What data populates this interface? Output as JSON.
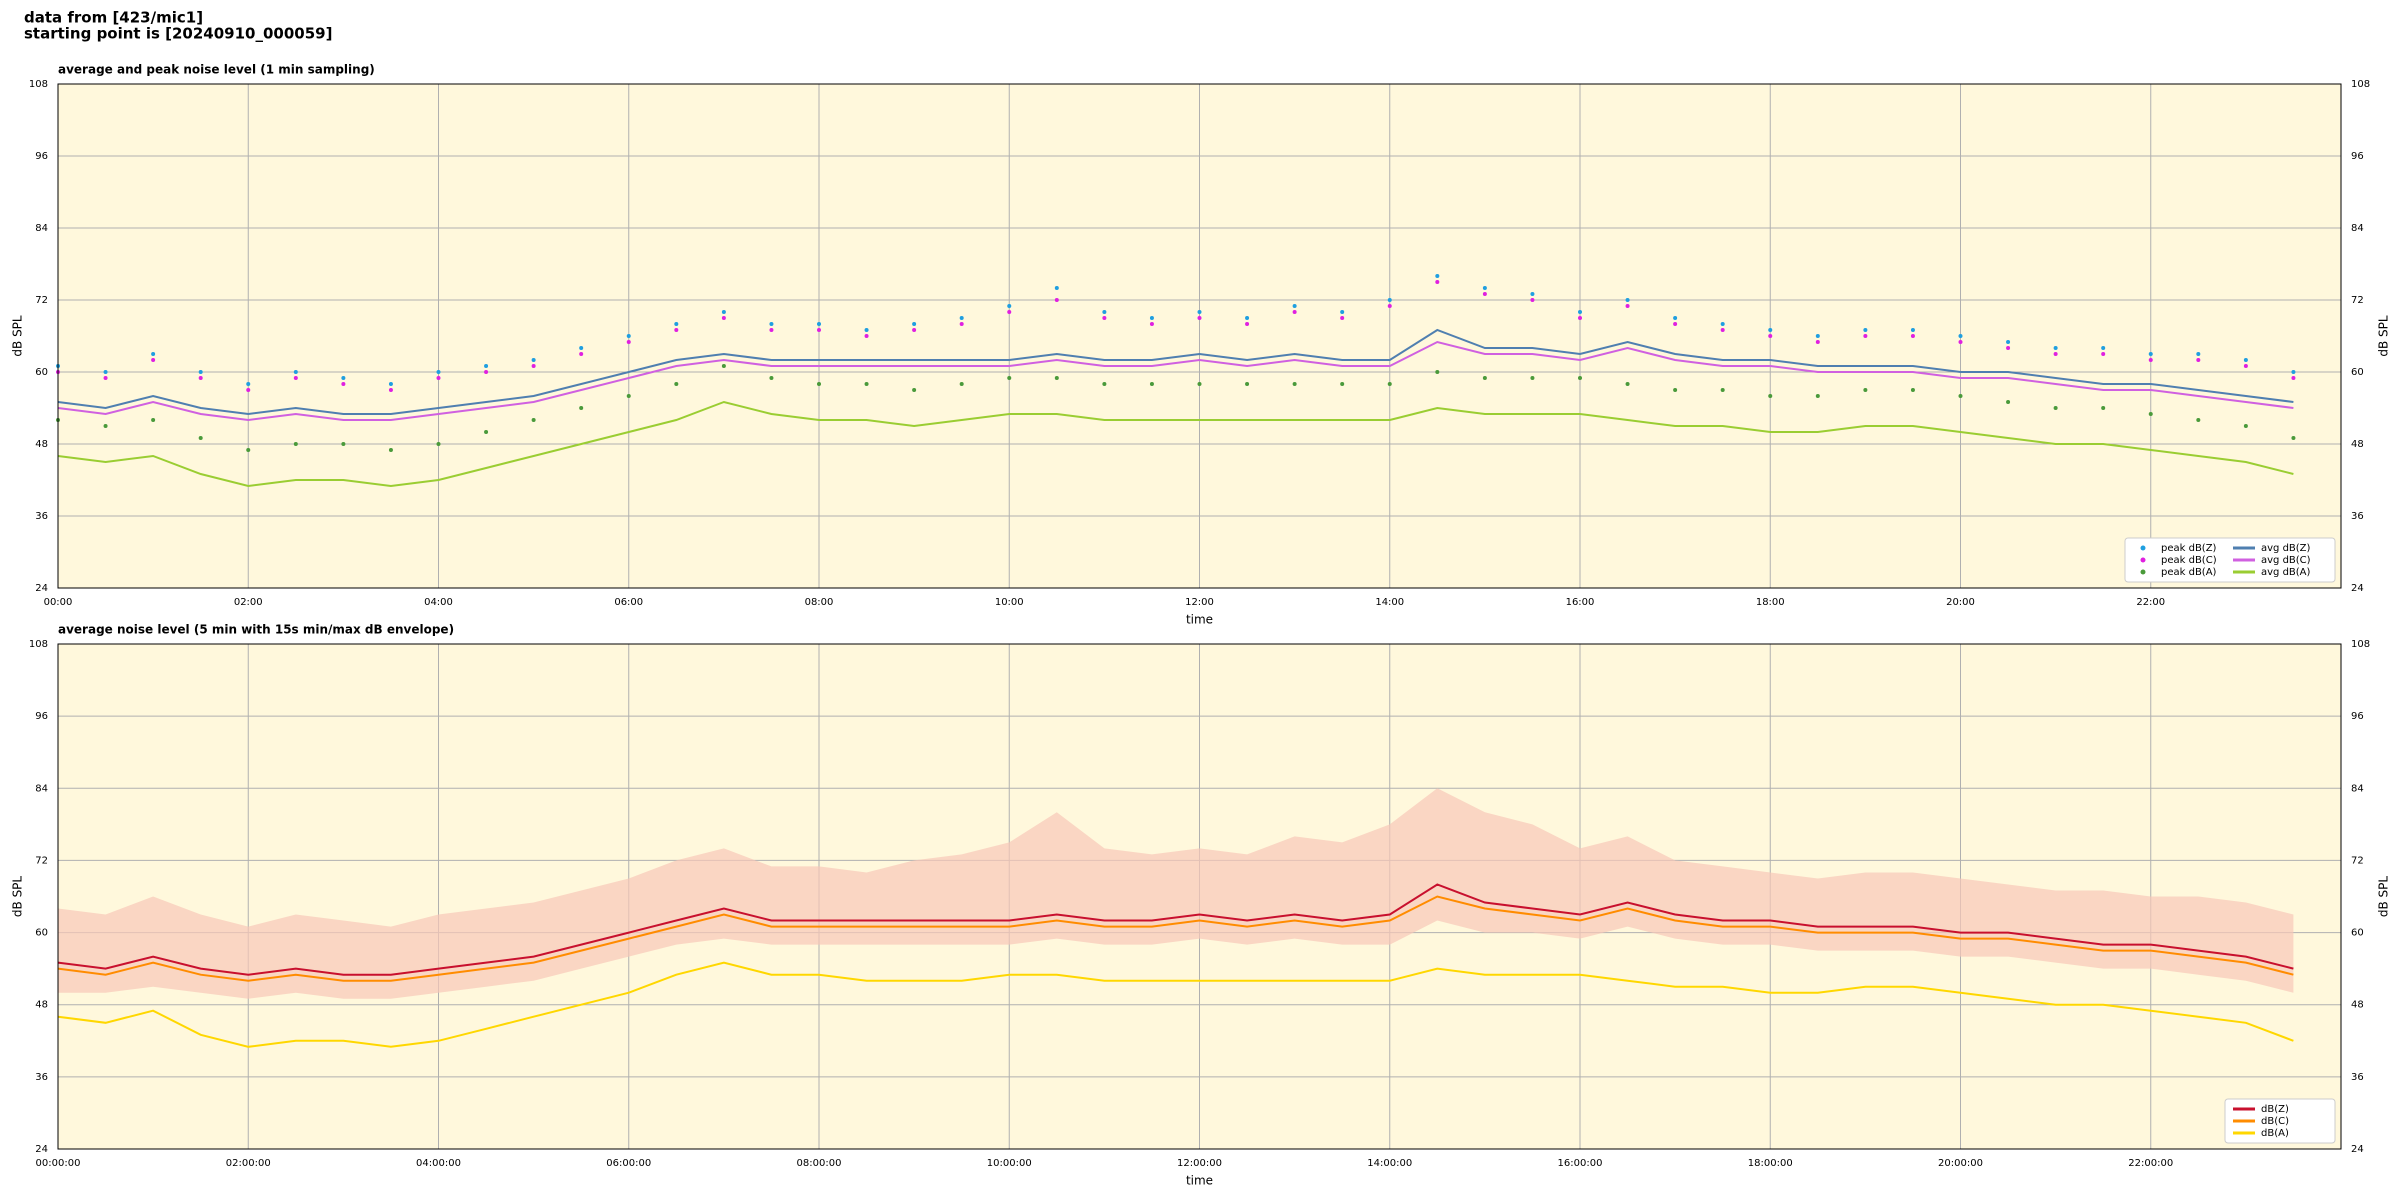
{
  "header": {
    "lines": [
      "data from [423/mic1]",
      "starting point is [20240910_000059]"
    ]
  },
  "chart_data": [
    {
      "type": "line",
      "title": "average and peak noise level (1 min sampling)",
      "xlabel": "time",
      "ylabel": "dB SPL",
      "x": [
        0,
        0.5,
        1,
        1.5,
        2,
        2.5,
        3,
        3.5,
        4,
        4.5,
        5,
        5.5,
        6,
        6.5,
        7,
        7.5,
        8,
        8.5,
        9,
        9.5,
        10,
        10.5,
        11,
        11.5,
        12,
        12.5,
        13,
        13.5,
        14,
        14.5,
        15,
        15.5,
        16,
        16.5,
        17,
        17.5,
        18,
        18.5,
        19,
        19.5,
        20,
        20.5,
        21,
        21.5,
        22,
        22.5,
        23,
        23.5
      ],
      "xlim": [
        0,
        24
      ],
      "xticks": [
        {
          "value": 0,
          "label": "00:00"
        },
        {
          "value": 2,
          "label": "02:00"
        },
        {
          "value": 4,
          "label": "04:00"
        },
        {
          "value": 6,
          "label": "06:00"
        },
        {
          "value": 8,
          "label": "08:00"
        },
        {
          "value": 10,
          "label": "10:00"
        },
        {
          "value": 12,
          "label": "12:00"
        },
        {
          "value": 14,
          "label": "14:00"
        },
        {
          "value": 16,
          "label": "16:00"
        },
        {
          "value": 18,
          "label": "18:00"
        },
        {
          "value": 20,
          "label": "20:00"
        },
        {
          "value": 22,
          "label": "22:00"
        }
      ],
      "ylim": [
        24,
        108
      ],
      "yticks": [
        24,
        36,
        48,
        60,
        72,
        84,
        96,
        108
      ],
      "grid": true,
      "legend": "lower right",
      "legend_columns": 2,
      "series": [
        {
          "name": "peak dB(Z)",
          "kind": "scatter",
          "color": "#1f9fe0",
          "values": [
            61,
            60,
            63,
            60,
            58,
            60,
            59,
            58,
            60,
            61,
            62,
            64,
            66,
            68,
            70,
            68,
            68,
            67,
            68,
            69,
            71,
            74,
            70,
            69,
            70,
            69,
            71,
            70,
            72,
            76,
            74,
            73,
            70,
            72,
            69,
            68,
            67,
            66,
            67,
            67,
            66,
            65,
            64,
            64,
            63,
            63,
            62,
            60
          ]
        },
        {
          "name": "peak dB(C)",
          "kind": "scatter",
          "color": "#e020e0",
          "values": [
            60,
            59,
            62,
            59,
            57,
            59,
            58,
            57,
            59,
            60,
            61,
            63,
            65,
            67,
            69,
            67,
            67,
            66,
            67,
            68,
            70,
            72,
            69,
            68,
            69,
            68,
            70,
            69,
            71,
            75,
            73,
            72,
            69,
            71,
            68,
            67,
            66,
            65,
            66,
            66,
            65,
            64,
            63,
            63,
            62,
            62,
            61,
            59
          ]
        },
        {
          "name": "peak dB(A)",
          "kind": "scatter",
          "color": "#4a9a3a",
          "values": [
            52,
            51,
            52,
            49,
            47,
            48,
            48,
            47,
            48,
            50,
            52,
            54,
            56,
            58,
            61,
            59,
            58,
            58,
            57,
            58,
            59,
            59,
            58,
            58,
            58,
            58,
            58,
            58,
            58,
            60,
            59,
            59,
            59,
            58,
            57,
            57,
            56,
            56,
            57,
            57,
            56,
            55,
            54,
            54,
            53,
            52,
            51,
            49
          ]
        },
        {
          "name": "avg dB(Z)",
          "kind": "line",
          "color": "#4f7fb0",
          "values": [
            55,
            54,
            56,
            54,
            53,
            54,
            53,
            53,
            54,
            55,
            56,
            58,
            60,
            62,
            63,
            62,
            62,
            62,
            62,
            62,
            62,
            63,
            62,
            62,
            63,
            62,
            63,
            62,
            62,
            67,
            64,
            64,
            63,
            65,
            63,
            62,
            62,
            61,
            61,
            61,
            60,
            60,
            59,
            58,
            58,
            57,
            56,
            55
          ]
        },
        {
          "name": "avg dB(C)",
          "kind": "line",
          "color": "#d060e0",
          "values": [
            54,
            53,
            55,
            53,
            52,
            53,
            52,
            52,
            53,
            54,
            55,
            57,
            59,
            61,
            62,
            61,
            61,
            61,
            61,
            61,
            61,
            62,
            61,
            61,
            62,
            61,
            62,
            61,
            61,
            65,
            63,
            63,
            62,
            64,
            62,
            61,
            61,
            60,
            60,
            60,
            59,
            59,
            58,
            57,
            57,
            56,
            55,
            54
          ]
        },
        {
          "name": "avg dB(A)",
          "kind": "line",
          "color": "#9acd32",
          "values": [
            46,
            45,
            46,
            43,
            41,
            42,
            42,
            41,
            42,
            44,
            46,
            48,
            50,
            52,
            55,
            53,
            52,
            52,
            51,
            52,
            53,
            53,
            52,
            52,
            52,
            52,
            52,
            52,
            52,
            54,
            53,
            53,
            53,
            52,
            51,
            51,
            50,
            50,
            51,
            51,
            50,
            49,
            48,
            48,
            47,
            46,
            45,
            43
          ]
        }
      ]
    },
    {
      "type": "line",
      "title": "average noise level (5 min with 15s min/max dB envelope)",
      "xlabel": "time",
      "ylabel": "dB SPL",
      "x": [
        0,
        0.5,
        1,
        1.5,
        2,
        2.5,
        3,
        3.5,
        4,
        4.5,
        5,
        5.5,
        6,
        6.5,
        7,
        7.5,
        8,
        8.5,
        9,
        9.5,
        10,
        10.5,
        11,
        11.5,
        12,
        12.5,
        13,
        13.5,
        14,
        14.5,
        15,
        15.5,
        16,
        16.5,
        17,
        17.5,
        18,
        18.5,
        19,
        19.5,
        20,
        20.5,
        21,
        21.5,
        22,
        22.5,
        23,
        23.5
      ],
      "xlim": [
        0,
        24
      ],
      "xticks": [
        {
          "value": 0,
          "label": "00:00:00"
        },
        {
          "value": 2,
          "label": "02:00:00"
        },
        {
          "value": 4,
          "label": "04:00:00"
        },
        {
          "value": 6,
          "label": "06:00:00"
        },
        {
          "value": 8,
          "label": "08:00:00"
        },
        {
          "value": 10,
          "label": "10:00:00"
        },
        {
          "value": 12,
          "label": "12:00:00"
        },
        {
          "value": 14,
          "label": "14:00:00"
        },
        {
          "value": 16,
          "label": "16:00:00"
        },
        {
          "value": 18,
          "label": "18:00:00"
        },
        {
          "value": 20,
          "label": "20:00:00"
        },
        {
          "value": 22,
          "label": "22:00:00"
        }
      ],
      "ylim": [
        24,
        108
      ],
      "yticks": [
        24,
        36,
        48,
        60,
        72,
        84,
        96,
        108
      ],
      "grid": true,
      "legend": "lower right",
      "legend_columns": 1,
      "envelope": {
        "color": "#f8c8b8",
        "low": [
          50,
          50,
          51,
          50,
          49,
          50,
          49,
          49,
          50,
          51,
          52,
          54,
          56,
          58,
          59,
          58,
          58,
          58,
          58,
          58,
          58,
          59,
          58,
          58,
          59,
          58,
          59,
          58,
          58,
          62,
          60,
          60,
          59,
          61,
          59,
          58,
          58,
          57,
          57,
          57,
          56,
          56,
          55,
          54,
          54,
          53,
          52,
          50
        ],
        "high": [
          64,
          63,
          66,
          63,
          61,
          63,
          62,
          61,
          63,
          64,
          65,
          67,
          69,
          72,
          74,
          71,
          71,
          70,
          72,
          73,
          75,
          80,
          74,
          73,
          74,
          73,
          76,
          75,
          78,
          84,
          80,
          78,
          74,
          76,
          72,
          71,
          70,
          69,
          70,
          70,
          69,
          68,
          67,
          67,
          66,
          66,
          65,
          63
        ]
      },
      "series": [
        {
          "name": "dB(Z)",
          "kind": "line",
          "color": "#c8102e",
          "values": [
            55,
            54,
            56,
            54,
            53,
            54,
            53,
            53,
            54,
            55,
            56,
            58,
            60,
            62,
            64,
            62,
            62,
            62,
            62,
            62,
            62,
            63,
            62,
            62,
            63,
            62,
            63,
            62,
            63,
            68,
            65,
            64,
            63,
            65,
            63,
            62,
            62,
            61,
            61,
            61,
            60,
            60,
            59,
            58,
            58,
            57,
            56,
            54
          ]
        },
        {
          "name": "dB(C)",
          "kind": "line",
          "color": "#ff8c00",
          "values": [
            54,
            53,
            55,
            53,
            52,
            53,
            52,
            52,
            53,
            54,
            55,
            57,
            59,
            61,
            63,
            61,
            61,
            61,
            61,
            61,
            61,
            62,
            61,
            61,
            62,
            61,
            62,
            61,
            62,
            66,
            64,
            63,
            62,
            64,
            62,
            61,
            61,
            60,
            60,
            60,
            59,
            59,
            58,
            57,
            57,
            56,
            55,
            53
          ]
        },
        {
          "name": "dB(A)",
          "kind": "line",
          "color": "#ffd700",
          "values": [
            46,
            45,
            47,
            43,
            41,
            42,
            42,
            41,
            42,
            44,
            46,
            48,
            50,
            53,
            55,
            53,
            53,
            52,
            52,
            52,
            53,
            53,
            52,
            52,
            52,
            52,
            52,
            52,
            52,
            54,
            53,
            53,
            53,
            52,
            51,
            51,
            50,
            50,
            51,
            51,
            50,
            49,
            48,
            48,
            47,
            46,
            45,
            42
          ]
        }
      ]
    }
  ]
}
